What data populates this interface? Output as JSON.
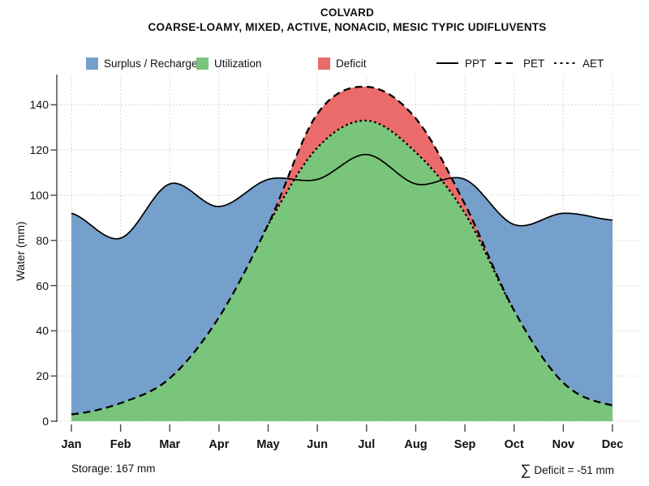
{
  "title": {
    "line1": "COLVARD",
    "line2": "COARSE-LOAMY, MIXED, ACTIVE, NONACID, MESIC TYPIC UDIFLUVENTS"
  },
  "legend": {
    "fills": [
      {
        "label": "Surplus / Recharge",
        "color": "#75A0CB"
      },
      {
        "label": "Utilization",
        "color": "#79C57B"
      },
      {
        "label": "Deficit",
        "color": "#EB6A6A"
      }
    ],
    "lines": [
      {
        "label": "PPT",
        "style": "solid"
      },
      {
        "label": "PET",
        "style": "dashed"
      },
      {
        "label": "AET",
        "style": "dotted"
      }
    ]
  },
  "axes": {
    "y_label": "Water (mm)",
    "y_ticks": [
      0,
      20,
      40,
      60,
      80,
      100,
      120,
      140
    ],
    "x_ticks": [
      "Jan",
      "Feb",
      "Mar",
      "Apr",
      "May",
      "Jun",
      "Jul",
      "Aug",
      "Sep",
      "Oct",
      "Nov",
      "Dec"
    ]
  },
  "chart_data": {
    "type": "area",
    "title": "COLVARD",
    "subtitle": "COARSE-LOAMY, MIXED, ACTIVE, NONACID, MESIC TYPIC UDIFLUVENTS",
    "xlabel": "",
    "ylabel": "Water (mm)",
    "ylim": [
      0,
      152
    ],
    "grid": true,
    "legend_position": "top",
    "categories": [
      "Jan",
      "Feb",
      "Mar",
      "Apr",
      "May",
      "Jun",
      "Jul",
      "Aug",
      "Sep",
      "Oct",
      "Nov",
      "Dec"
    ],
    "series": [
      {
        "name": "PPT",
        "line": "solid",
        "values": [
          92,
          81,
          105,
          95,
          107,
          107,
          118,
          105,
          107,
          87,
          92,
          89
        ]
      },
      {
        "name": "PET",
        "line": "dashed",
        "values": [
          3,
          8,
          19,
          46,
          87,
          136,
          148,
          134,
          96,
          49,
          17,
          7
        ]
      },
      {
        "name": "AET",
        "line": "dotted",
        "values": [
          3,
          8,
          19,
          46,
          87,
          121,
          133,
          119,
          92,
          49,
          17,
          7
        ]
      }
    ],
    "areas": [
      {
        "name": "Surplus / Recharge",
        "color": "#75A0CB",
        "between": [
          "PET",
          "PPT"
        ],
        "where": "PPT > PET"
      },
      {
        "name": "Utilization",
        "color": "#79C57B",
        "between": [
          "0",
          "AET"
        ],
        "where": "always"
      },
      {
        "name": "Deficit",
        "color": "#EB6A6A",
        "between": [
          "AET",
          "PET"
        ],
        "where": "PET > AET"
      }
    ],
    "annotations": [
      "Storage: 167 mm",
      "∑ Deficit = -51 mm"
    ]
  },
  "footer": {
    "storage": "Storage: 167 mm",
    "sum_symbol": "∑",
    "deficit": "Deficit = -51 mm"
  },
  "style": {
    "grid_color": "#D6D6D6",
    "axis_color": "#444444",
    "line_color": "#000000",
    "background": "#FFFFFF"
  }
}
